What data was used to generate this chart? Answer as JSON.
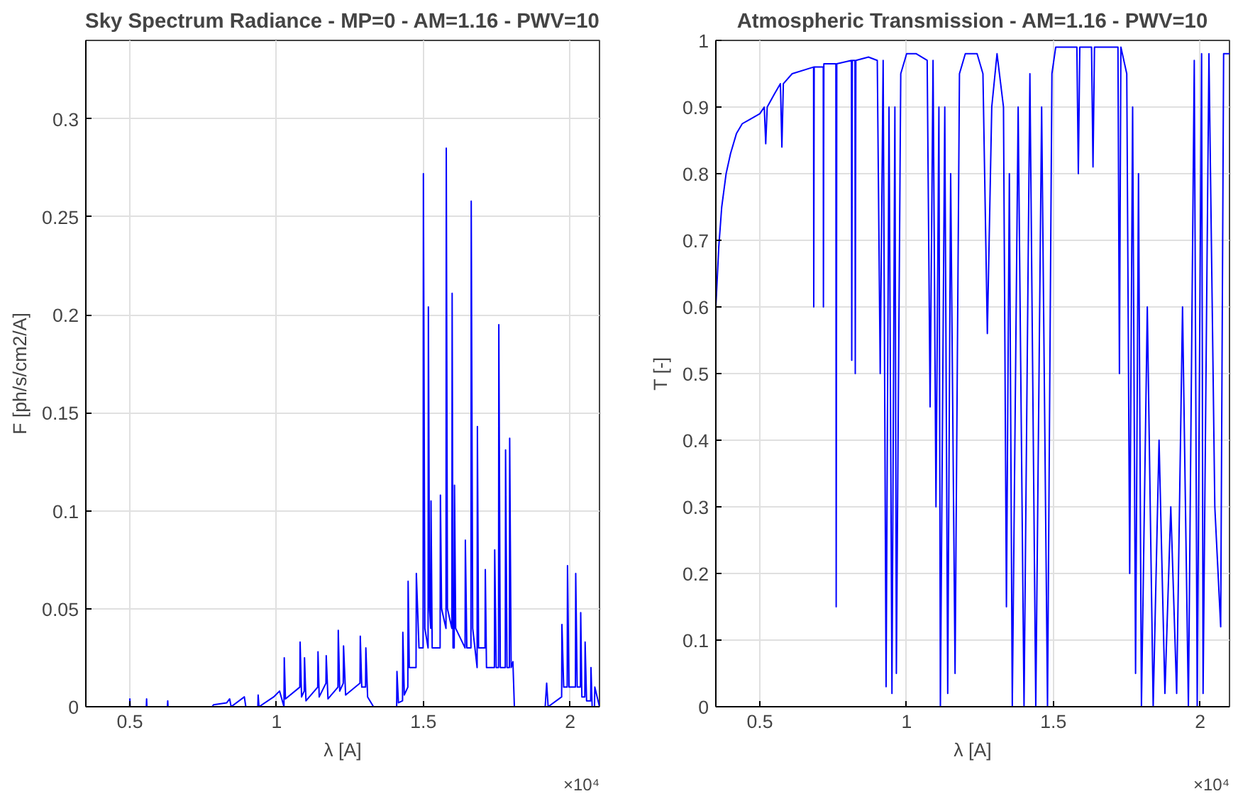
{
  "chart_data": [
    {
      "type": "line",
      "title": "Sky Spectrum Radiance - MP=0 - AM=1.16 - PWV=10",
      "xlabel": "λ [A]",
      "ylabel": "F [ph/s/cm2/A]",
      "annotations": [
        "×10⁴"
      ],
      "grid": true,
      "xlim": [
        0.35,
        2.1
      ],
      "xticks": [
        0.5,
        1,
        1.5,
        2
      ],
      "ylim": [
        0,
        0.34
      ],
      "yticks": [
        0,
        0.05,
        0.1,
        0.15,
        0.2,
        0.25,
        0.3
      ],
      "series": [
        {
          "color": "#0000ff",
          "x": [
            0.35,
            0.499,
            0.5,
            0.501,
            0.556,
            0.557,
            0.558,
            0.628,
            0.629,
            0.63,
            0.78,
            0.785,
            0.83,
            0.84,
            0.845,
            0.89,
            0.895,
            0.936,
            0.937,
            0.94,
            0.99,
            1.01,
            1.025,
            1.026,
            1.03,
            1.079,
            1.08,
            1.085,
            1.094,
            1.095,
            1.1,
            1.14,
            1.141,
            1.145,
            1.168,
            1.169,
            1.175,
            1.209,
            1.21,
            1.215,
            1.227,
            1.228,
            1.235,
            1.284,
            1.285,
            1.29,
            1.303,
            1.304,
            1.31,
            1.33,
            1.4,
            1.409,
            1.41,
            1.415,
            1.429,
            1.43,
            1.435,
            1.447,
            1.448,
            1.452,
            1.475,
            1.476,
            1.485,
            1.499,
            1.5,
            1.505,
            1.516,
            1.517,
            1.521,
            1.525,
            1.526,
            1.53,
            1.557,
            1.558,
            1.562,
            1.577,
            1.578,
            1.582,
            1.597,
            1.598,
            1.601,
            1.605,
            1.606,
            1.61,
            1.642,
            1.643,
            1.648,
            1.662,
            1.663,
            1.668,
            1.683,
            1.684,
            1.688,
            1.71,
            1.711,
            1.715,
            1.742,
            1.743,
            1.748,
            1.756,
            1.757,
            1.762,
            1.779,
            1.78,
            1.785,
            1.793,
            1.794,
            1.799,
            1.805,
            1.81,
            1.915,
            1.92,
            1.925,
            1.971,
            1.972,
            1.978,
            1.99,
            1.991,
            1.996,
            2.018,
            2.019,
            2.024,
            2.035,
            2.036,
            2.04,
            2.05,
            2.051,
            2.056,
            2.07,
            2.071,
            2.075,
            2.083,
            2.084,
            2.1
          ],
          "values": [
            0,
            0,
            0.004,
            0,
            0,
            0.004,
            0,
            0,
            0.003,
            0,
            0,
            0.001,
            0.002,
            0.004,
            0,
            0.005,
            0,
            0,
            0.006,
            0,
            0.005,
            0.008,
            0,
            0.025,
            0.004,
            0.01,
            0.033,
            0.005,
            0.008,
            0.025,
            0.003,
            0.01,
            0.028,
            0.005,
            0.012,
            0.026,
            0.004,
            0.01,
            0.039,
            0.008,
            0.012,
            0.031,
            0.006,
            0.012,
            0.036,
            0.01,
            0.01,
            0.03,
            0.005,
            0,
            0,
            0,
            0.018,
            0.002,
            0.003,
            0.038,
            0.006,
            0.01,
            0.064,
            0.02,
            0.02,
            0.068,
            0.03,
            0.03,
            0.272,
            0.04,
            0.03,
            0.204,
            0.05,
            0.04,
            0.105,
            0.03,
            0.03,
            0.108,
            0.05,
            0.04,
            0.285,
            0.05,
            0.04,
            0.211,
            0.03,
            0.03,
            0.113,
            0.04,
            0.03,
            0.085,
            0.03,
            0.03,
            0.258,
            0.04,
            0.02,
            0.143,
            0.03,
            0.03,
            0.07,
            0.02,
            0.02,
            0.08,
            0.02,
            0.02,
            0.195,
            0.02,
            0.02,
            0.131,
            0.02,
            0.02,
            0.137,
            0.02,
            0.023,
            0,
            0,
            0.012,
            0,
            0.005,
            0.042,
            0.01,
            0.01,
            0.072,
            0.01,
            0.01,
            0.068,
            0.01,
            0.01,
            0.048,
            0.005,
            0.005,
            0.033,
            0.003,
            0.003,
            0.02,
            0,
            0,
            0.01,
            0
          ]
        }
      ]
    },
    {
      "type": "line",
      "title": "Atmospheric Transmission - AM=1.16 - PWV=10",
      "xlabel": "λ [A]",
      "ylabel": "T [-]",
      "annotations": [
        "×10⁴"
      ],
      "grid": true,
      "xlim": [
        0.35,
        2.1
      ],
      "xticks": [
        0.5,
        1,
        1.5,
        2
      ],
      "ylim": [
        0,
        1
      ],
      "yticks": [
        0,
        0.1,
        0.2,
        0.3,
        0.4,
        0.5,
        0.6,
        0.7,
        0.8,
        0.9,
        1
      ],
      "series": [
        {
          "color": "#0000ff",
          "x": [
            0.35,
            0.36,
            0.37,
            0.385,
            0.4,
            0.42,
            0.44,
            0.46,
            0.48,
            0.5,
            0.515,
            0.52,
            0.525,
            0.55,
            0.57,
            0.575,
            0.58,
            0.61,
            0.683,
            0.6835,
            0.685,
            0.716,
            0.7165,
            0.718,
            0.759,
            0.76,
            0.762,
            0.812,
            0.813,
            0.815,
            0.824,
            0.825,
            0.827,
            0.87,
            0.9,
            0.91,
            0.92,
            0.93,
            0.94,
            0.95,
            0.96,
            0.965,
            0.98,
            1.0,
            1.033,
            1.07,
            1.08,
            1.09,
            1.1,
            1.11,
            1.115,
            1.13,
            1.14,
            1.15,
            1.165,
            1.18,
            1.2,
            1.24,
            1.26,
            1.275,
            1.29,
            1.308,
            1.33,
            1.34,
            1.35,
            1.36,
            1.38,
            1.4,
            1.42,
            1.44,
            1.46,
            1.48,
            1.495,
            1.508,
            1.58,
            1.585,
            1.59,
            1.63,
            1.635,
            1.64,
            1.72,
            1.725,
            1.73,
            1.75,
            1.76,
            1.77,
            1.78,
            1.79,
            1.8,
            1.82,
            1.84,
            1.86,
            1.88,
            1.9,
            1.92,
            1.94,
            1.96,
            1.98,
            1.99,
            2.005,
            2.01,
            2.03,
            2.05,
            2.07,
            2.08,
            2.1
          ],
          "values": [
            0.6,
            0.69,
            0.75,
            0.8,
            0.83,
            0.86,
            0.875,
            0.88,
            0.885,
            0.89,
            0.9,
            0.845,
            0.9,
            0.92,
            0.935,
            0.84,
            0.935,
            0.95,
            0.96,
            0.6,
            0.96,
            0.96,
            0.6,
            0.965,
            0.965,
            0.15,
            0.965,
            0.97,
            0.52,
            0.97,
            0.97,
            0.5,
            0.97,
            0.975,
            0.97,
            0.5,
            0.97,
            0.03,
            0.9,
            0.02,
            0.9,
            0.05,
            0.95,
            0.98,
            0.98,
            0.97,
            0.45,
            0.97,
            0.3,
            0.9,
            0,
            0.9,
            0.02,
            0.8,
            0.05,
            0.95,
            0.98,
            0.98,
            0.95,
            0.56,
            0.9,
            0.98,
            0.9,
            0.15,
            0.8,
            0,
            0.9,
            0,
            0.95,
            0,
            0.9,
            0,
            0.95,
            0.99,
            0.99,
            0.8,
            0.99,
            0.99,
            0.81,
            0.99,
            0.99,
            0.5,
            0.99,
            0.95,
            0.2,
            0.9,
            0.05,
            0.8,
            0,
            0.6,
            0,
            0.4,
            0.02,
            0.3,
            0.02,
            0.6,
            0,
            0.97,
            0,
            0.98,
            0.02,
            0.98,
            0.3,
            0.12,
            0.98,
            0.98
          ]
        }
      ]
    }
  ]
}
